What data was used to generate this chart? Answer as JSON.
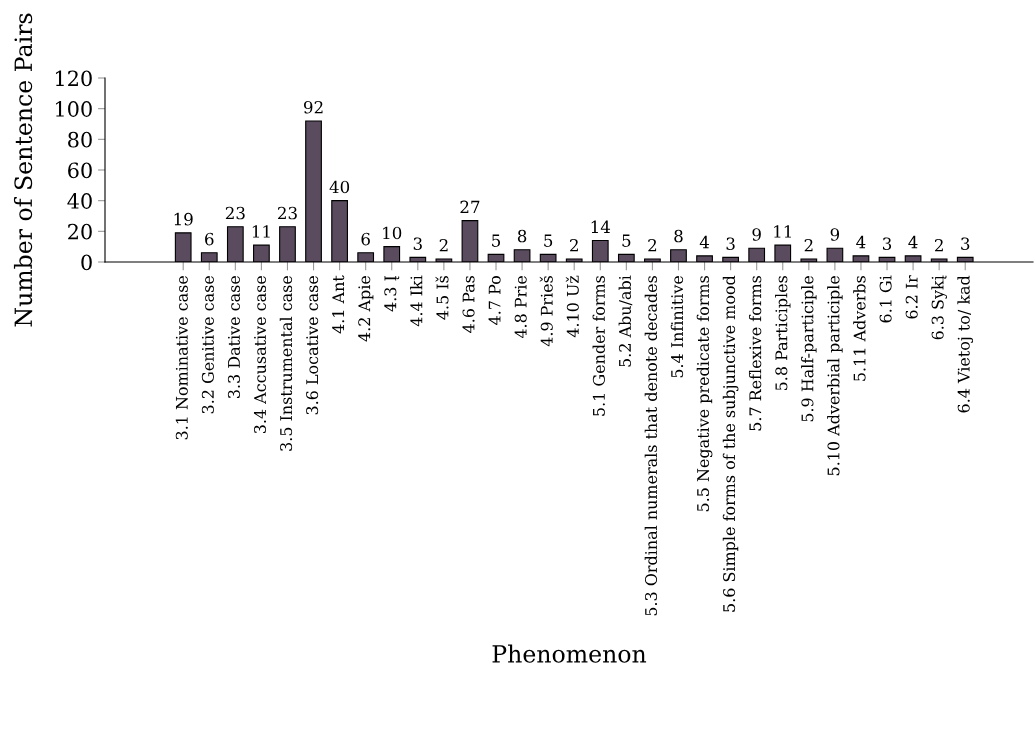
{
  "chart_data": {
    "type": "bar",
    "xlabel": "Phenomenon",
    "ylabel": "Number of Sentence Pairs",
    "categories": [
      "3.1 Nominative case",
      "3.2 Genitive case",
      "3.3 Dative case",
      "3.4 Accusative case",
      "3.5 Instrumental case",
      "3.6 Locative case",
      "4.1 Ant",
      "4.2 Apie",
      "4.3 Į",
      "4.4 Iki",
      "4.5 Iš",
      "4.6 Pas",
      "4.7 Po",
      "4.8 Prie",
      "4.9 Prieš",
      "4.10 Už",
      "5.1 Gender forms",
      "5.2 Abu/abi",
      "5.3 Ordinal numerals that denote decades",
      "5.4 Infinitive",
      "5.5 Negative predicate forms",
      "5.6 Simple forms of the subjunctive mood",
      "5.7 Reflexive forms",
      "5.8 Participles",
      "5.9 Half-participle",
      "5.10 Adverbial participle",
      "5.11 Adverbs",
      "6.1 Gi",
      "6.2 Ir",
      "6.3 Sykį",
      "6.4 Vietoj to/ kad"
    ],
    "values": [
      19,
      6,
      23,
      11,
      23,
      92,
      40,
      6,
      10,
      3,
      2,
      27,
      5,
      8,
      5,
      2,
      14,
      5,
      2,
      8,
      4,
      3,
      9,
      11,
      2,
      9,
      4,
      3,
      4,
      2,
      3
    ],
    "color": "#5a4b5e",
    "ylim": [
      0,
      120
    ],
    "yticks": [
      0,
      20,
      40,
      60,
      80,
      100,
      120
    ],
    "data_labels": true,
    "grid": false,
    "legend": false
  }
}
